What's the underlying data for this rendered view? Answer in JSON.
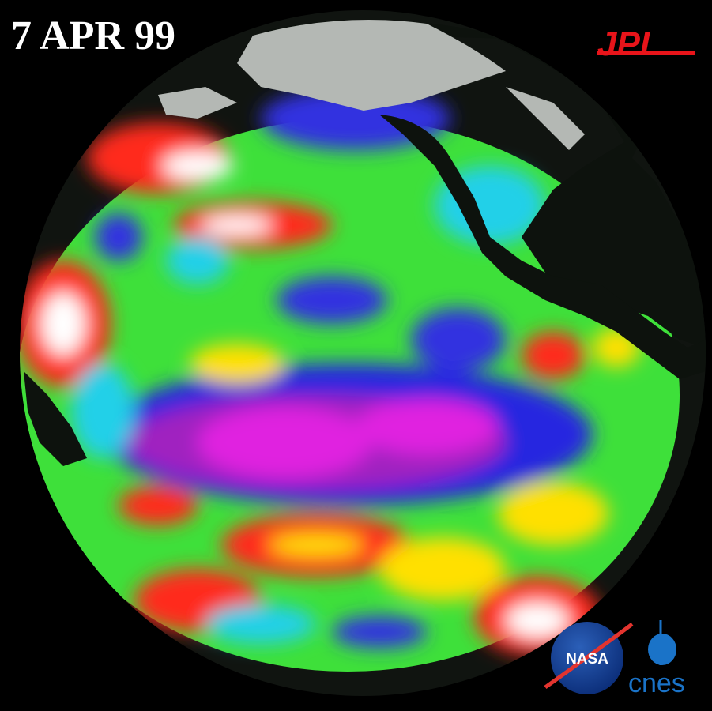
{
  "date_label": "7 APR 99",
  "logos": {
    "jpl": "JPL",
    "nasa": "NASA",
    "cnes": "cnes"
  }
}
